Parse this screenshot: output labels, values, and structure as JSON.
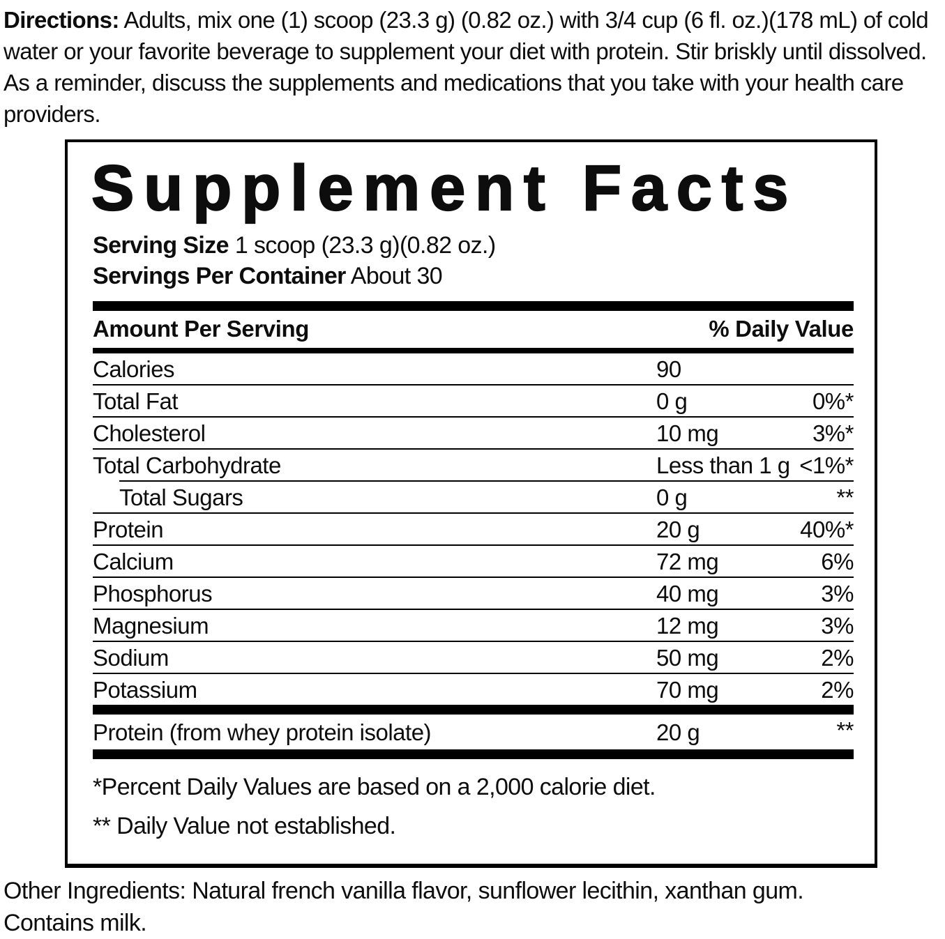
{
  "colors": {
    "ink": "#000000",
    "background": "#ffffff"
  },
  "directions": {
    "label": "Directions:",
    "text": " Adults, mix one (1) scoop (23.3 g) (0.82 oz.) with 3/4 cup (6 fl. oz.)(178 mL) of cold water or your favorite beverage to supplement your diet with protein. Stir briskly until dissolved. As a reminder, discuss the supplements and medications that you take with your health care providers."
  },
  "panel": {
    "title": "Supplement Facts",
    "serving_size_label": "Serving Size",
    "serving_size_value": " 1 scoop (23.3 g)(0.82 oz.)",
    "servings_per_container_label": "Servings Per Container",
    "servings_per_container_value": " About 30",
    "columns": {
      "amount_header": "Amount Per Serving",
      "dv_header": "% Daily Value"
    },
    "rows": [
      {
        "name": "Calories",
        "amount": "90",
        "dv": "",
        "indent": false
      },
      {
        "name": "Total Fat",
        "amount": "0 g",
        "dv": "0%*",
        "indent": false
      },
      {
        "name": "Cholesterol",
        "amount": "10 mg",
        "dv": "3%*",
        "indent": false
      },
      {
        "name": "Total Carbohydrate",
        "amount": "Less than 1 g",
        "dv": "<1%*",
        "indent": false
      },
      {
        "name": "Total Sugars",
        "amount": "0 g",
        "dv": "**",
        "indent": true
      },
      {
        "name": "Protein",
        "amount": "20 g",
        "dv": "40%*",
        "indent": false
      },
      {
        "name": "Calcium",
        "amount": "72 mg",
        "dv": "6%",
        "indent": false
      },
      {
        "name": "Phosphorus",
        "amount": "40 mg",
        "dv": "3%",
        "indent": false
      },
      {
        "name": "Magnesium",
        "amount": "12 mg",
        "dv": "3%",
        "indent": false
      },
      {
        "name": "Sodium",
        "amount": "50 mg",
        "dv": "2%",
        "indent": false
      },
      {
        "name": "Potassium",
        "amount": "70 mg",
        "dv": "2%",
        "indent": false
      }
    ],
    "extra_rows": [
      {
        "name": "Protein (from whey protein isolate)",
        "amount": "20 g",
        "dv": "**"
      }
    ],
    "footnotes": [
      "*Percent Daily Values are based on a 2,000 calorie diet.",
      "** Daily Value not established."
    ]
  },
  "other_ingredients": "Other Ingredients: Natural french vanilla flavor, sunflower lecithin, xanthan gum.",
  "contains": "Contains milk."
}
